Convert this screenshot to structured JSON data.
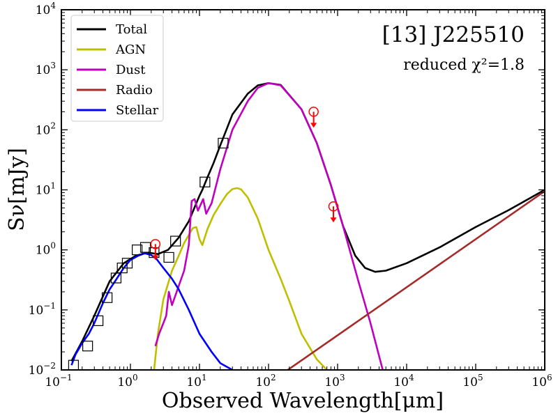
{
  "chart_data": {
    "type": "line",
    "scale": "log-log",
    "title": "[13] J225510",
    "subtitle": "reduced χ²=1.8",
    "xlabel": "Observed Wavelength[μm]",
    "ylabel": "Sν[mJy]",
    "xlim": [
      0.1,
      1000000
    ],
    "ylim": [
      0.01,
      10000
    ],
    "x_ticks": [
      {
        "value": 0.1,
        "mant": "10",
        "exp": "−1"
      },
      {
        "value": 1,
        "mant": "10",
        "exp": "0"
      },
      {
        "value": 10,
        "mant": "10",
        "exp": "1"
      },
      {
        "value": 100,
        "mant": "10",
        "exp": "2"
      },
      {
        "value": 1000,
        "mant": "10",
        "exp": "3"
      },
      {
        "value": 10000,
        "mant": "10",
        "exp": "4"
      },
      {
        "value": 100000,
        "mant": "10",
        "exp": "5"
      },
      {
        "value": 1000000,
        "mant": "10",
        "exp": "6"
      }
    ],
    "y_ticks": [
      {
        "value": 0.01,
        "mant": "10",
        "exp": "−2"
      },
      {
        "value": 0.1,
        "mant": "10",
        "exp": "−1"
      },
      {
        "value": 1,
        "mant": "10",
        "exp": "0"
      },
      {
        "value": 10,
        "mant": "10",
        "exp": "1"
      },
      {
        "value": 100,
        "mant": "10",
        "exp": "2"
      },
      {
        "value": 1000,
        "mant": "10",
        "exp": "3"
      },
      {
        "value": 10000,
        "mant": "10",
        "exp": "4"
      }
    ],
    "legend": {
      "placement": "top-left",
      "entries": [
        {
          "label": "Total",
          "color": "#000000"
        },
        {
          "label": "AGN",
          "color": "#bfbf00"
        },
        {
          "label": "Dust",
          "color": "#bf00bf"
        },
        {
          "label": "Radio",
          "color": "#a52a2a"
        },
        {
          "label": "Stellar",
          "color": "#0000ff"
        }
      ]
    },
    "series": [
      {
        "name": "Total",
        "color": "#000000",
        "x": [
          0.14,
          0.2,
          0.3,
          0.5,
          0.8,
          1.2,
          1.8,
          2.5,
          3.5,
          5,
          7,
          9,
          10,
          11,
          13,
          16,
          20,
          30,
          50,
          70,
          100,
          150,
          300,
          500,
          800,
          1200,
          1800,
          2500,
          3500,
          5000,
          10000,
          30000,
          100000,
          300000,
          1000000
        ],
        "y": [
          0.014,
          0.03,
          0.08,
          0.3,
          0.6,
          0.8,
          0.9,
          0.85,
          1.0,
          1.6,
          3.0,
          6,
          8,
          10,
          16,
          28,
          55,
          180,
          400,
          550,
          600,
          560,
          220,
          60,
          12,
          2.5,
          0.8,
          0.5,
          0.43,
          0.45,
          0.6,
          1.1,
          2.4,
          4.6,
          10
        ]
      },
      {
        "name": "AGN",
        "color": "#bfbf00",
        "x": [
          2.2,
          2.5,
          3,
          4,
          5,
          6,
          8,
          9,
          10,
          11,
          13,
          16,
          20,
          25,
          30,
          35,
          40,
          50,
          70,
          100,
          150,
          200,
          300,
          500,
          700
        ],
        "y": [
          0.01,
          0.04,
          0.15,
          0.45,
          0.8,
          1.3,
          2.3,
          2.4,
          1.5,
          1.2,
          2.2,
          3.8,
          5.8,
          8.5,
          10.3,
          10.7,
          10.2,
          7.5,
          3.3,
          1.0,
          0.33,
          0.14,
          0.04,
          0.015,
          0.01
        ]
      },
      {
        "name": "Dust",
        "color": "#bf00bf",
        "x": [
          2.3,
          2.6,
          3.0,
          3.3,
          3.6,
          4.0,
          5.0,
          6.0,
          7.0,
          7.7,
          8.5,
          9.5,
          11.3,
          12.5,
          15,
          20,
          30,
          50,
          70,
          100,
          150,
          300,
          500,
          800,
          1200,
          2000,
          3000,
          4500
        ],
        "y": [
          0.025,
          0.04,
          0.06,
          0.08,
          0.2,
          0.12,
          0.25,
          0.45,
          1.2,
          6.5,
          7,
          4.5,
          7,
          4,
          6,
          22,
          100,
          300,
          500,
          600,
          550,
          220,
          60,
          12,
          2.5,
          0.3,
          0.06,
          0.01
        ]
      },
      {
        "name": "Radio",
        "color": "#a52a2a",
        "x": [
          190,
          1000000
        ],
        "y": [
          0.01,
          9.5
        ]
      },
      {
        "name": "Stellar",
        "color": "#0000ff",
        "x": [
          0.14,
          0.16,
          0.2,
          0.25,
          0.3,
          0.4,
          0.5,
          0.6,
          0.8,
          1.0,
          1.3,
          1.6,
          2.0,
          2.4,
          3.0,
          4.0,
          5.0,
          7.0,
          10,
          15,
          20,
          30
        ],
        "y": [
          0.012,
          0.018,
          0.028,
          0.04,
          0.06,
          0.13,
          0.22,
          0.3,
          0.5,
          0.68,
          0.8,
          0.88,
          0.82,
          0.7,
          0.5,
          0.33,
          0.22,
          0.1,
          0.04,
          0.02,
          0.013,
          0.01
        ]
      }
    ],
    "observed_points": {
      "marker": "square",
      "x": [
        0.15,
        0.24,
        0.34,
        0.46,
        0.62,
        0.76,
        0.9,
        1.25,
        1.65,
        2.2,
        3.6,
        4.5,
        12,
        22
      ],
      "y": [
        0.012,
        0.025,
        0.066,
        0.16,
        0.34,
        0.5,
        0.6,
        1.0,
        1.1,
        0.9,
        0.75,
        1.4,
        13.5,
        60
      ]
    },
    "upper_limits": {
      "marker": "circle-with-down-arrow",
      "color": "#ff0000",
      "x": [
        2.3,
        450,
        870
      ],
      "y": [
        1.25,
        200,
        5.3
      ]
    }
  }
}
